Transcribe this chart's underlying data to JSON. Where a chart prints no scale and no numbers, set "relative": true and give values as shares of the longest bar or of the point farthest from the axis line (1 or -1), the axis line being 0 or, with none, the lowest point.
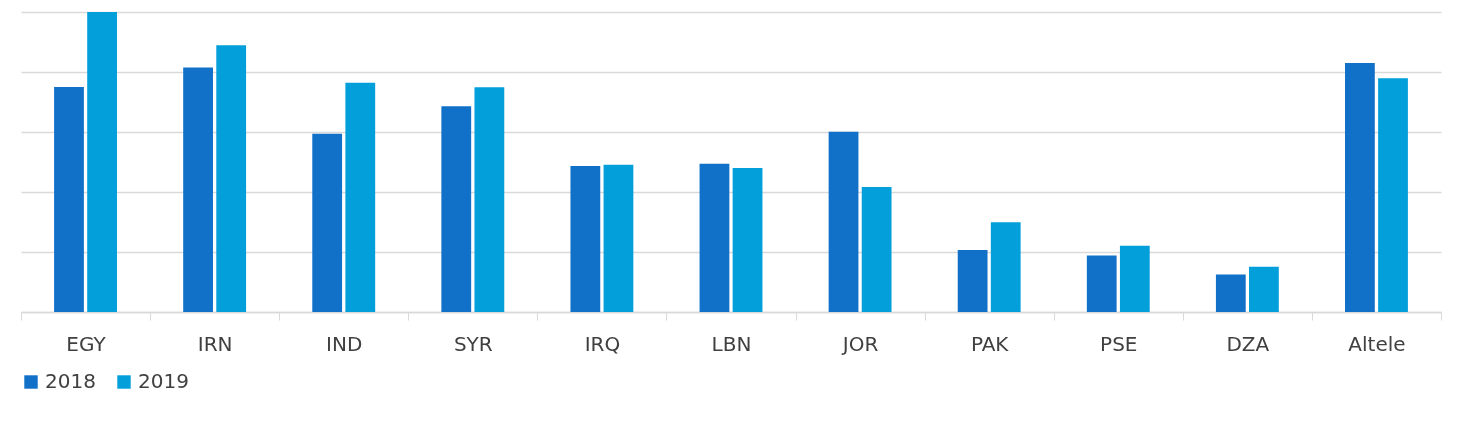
{
  "chart_data": {
    "type": "bar",
    "relative": true,
    "categories": [
      "EGY",
      "IRN",
      "IND",
      "SYR",
      "IRQ",
      "LBN",
      "JOR",
      "PAK",
      "PSE",
      "DZA",
      "Altele"
    ],
    "series": [
      {
        "name": "2018",
        "color": "#1170c7",
        "values": [
          0.75,
          0.815,
          0.594,
          0.686,
          0.487,
          0.494,
          0.601,
          0.207,
          0.188,
          0.125,
          0.83
        ]
      },
      {
        "name": "2019",
        "color": "#039fdb",
        "values": [
          1,
          0.889,
          0.764,
          0.749,
          0.491,
          0.48,
          0.417,
          0.299,
          0.221,
          0.151,
          0.779
        ]
      }
    ],
    "grid": "y",
    "legend": "bottom"
  }
}
